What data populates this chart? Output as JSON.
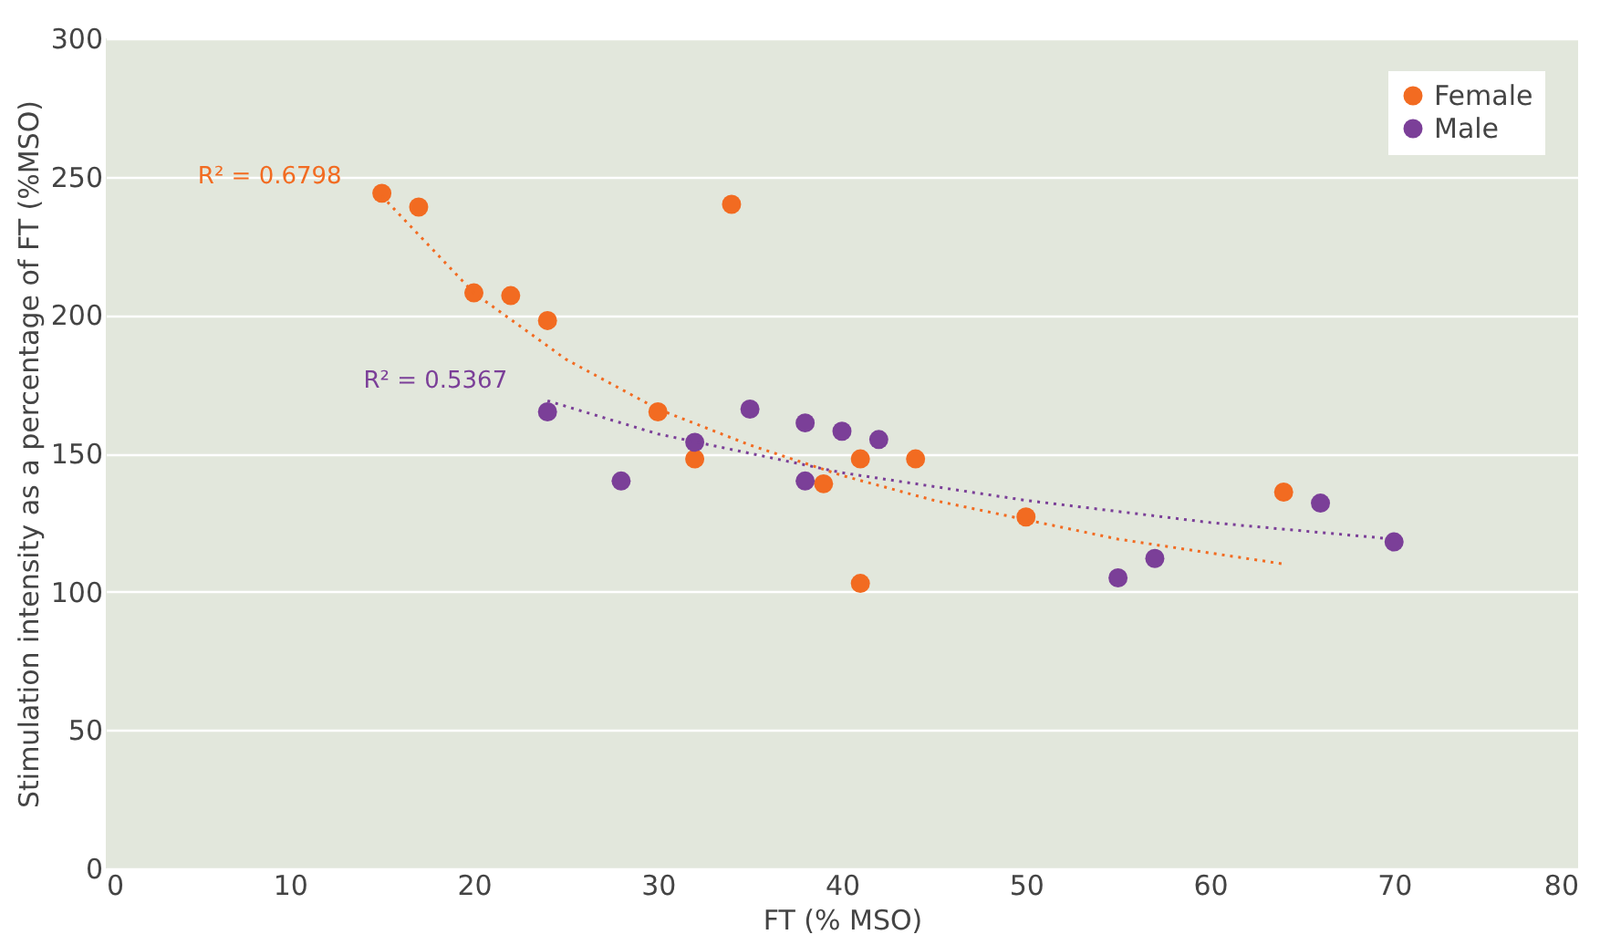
{
  "chart_data": {
    "type": "scatter",
    "xlabel": "FT (% MSO)",
    "ylabel": "Stimulation intensity as a percentage of FT (%MSO)",
    "xlim": [
      0,
      80
    ],
    "xticks": [
      0,
      10,
      20,
      30,
      40,
      50,
      60,
      70,
      80
    ],
    "ylim": [
      0,
      300
    ],
    "yticks": [
      0,
      50,
      100,
      150,
      200,
      250,
      300
    ],
    "grid": "y",
    "legend": "top right",
    "marker": "circle",
    "annotations": [
      "R² = 0.6798",
      "R² = 0.5367"
    ],
    "series": [
      {
        "name": "Female",
        "color": "#f26b21",
        "x": [
          15,
          17,
          20,
          22,
          24,
          34,
          30,
          32,
          39,
          41,
          44,
          41,
          50,
          64
        ],
        "values": [
          244,
          239,
          208,
          207,
          198,
          240,
          165,
          148,
          139,
          148,
          148,
          103,
          127,
          136
        ]
      },
      {
        "name": "Male",
        "color": "#7b3f98",
        "x": [
          24,
          28,
          32,
          35,
          38,
          38,
          40,
          42,
          55,
          57,
          66,
          70
        ],
        "values": [
          165,
          140,
          154,
          166,
          161,
          140,
          158,
          155,
          105,
          112,
          132,
          118
        ]
      },
      {
        "type": "line",
        "color": "#f26b21",
        "line_style": "dotted",
        "marker": "none",
        "x": [
          15,
          20,
          25,
          30,
          35,
          40,
          45,
          50,
          55,
          60,
          64
        ],
        "values": [
          243,
          208,
          184,
          166,
          153,
          142,
          133,
          126,
          119,
          114,
          110
        ]
      },
      {
        "type": "line",
        "color": "#7b3f98",
        "line_style": "dotted",
        "marker": "none",
        "x": [
          24,
          30,
          40,
          50,
          60,
          70
        ],
        "values": [
          169,
          157,
          143,
          133,
          125,
          119
        ]
      }
    ]
  }
}
